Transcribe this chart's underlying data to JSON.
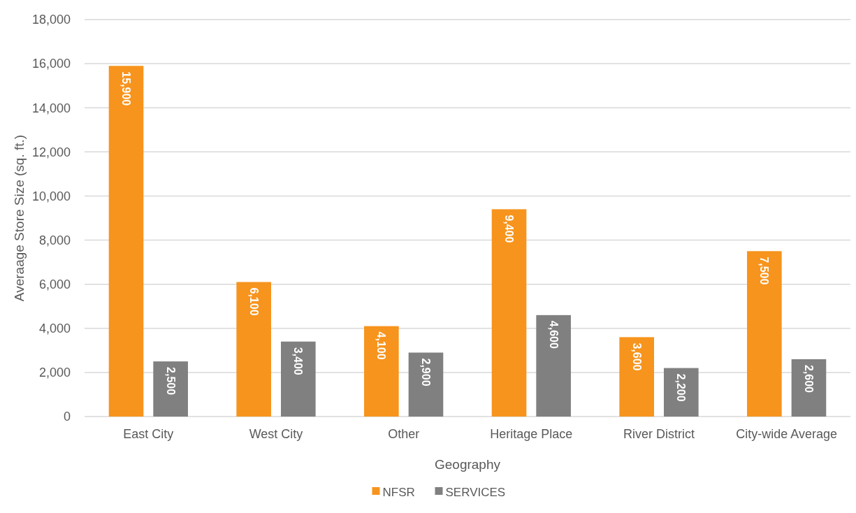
{
  "chart_data": {
    "type": "bar",
    "xlabel": "Geography",
    "ylabel": "Averaage Store Size (sq. ft.)",
    "categories": [
      "East City",
      "West City",
      "Other",
      "Heritage Place",
      "River District",
      "City-wide Average"
    ],
    "series": [
      {
        "name": "NFSR",
        "color": "#f7941d",
        "values": [
          15900,
          6100,
          4100,
          9400,
          3600,
          7500
        ],
        "value_labels": [
          "15,900",
          "6,100",
          "4,100",
          "9,400",
          "3,600",
          "7,500"
        ]
      },
      {
        "name": "SERVICES",
        "color": "#808080",
        "values": [
          2500,
          3400,
          2900,
          4600,
          2200,
          2600
        ],
        "value_labels": [
          "2,500",
          "3,400",
          "2,900",
          "4,600",
          "2,200",
          "2,600"
        ]
      }
    ],
    "ylim": [
      0,
      18000
    ],
    "yticks": [
      {
        "value": 0,
        "label": "0"
      },
      {
        "value": 2000,
        "label": "2,000"
      },
      {
        "value": 4000,
        "label": "4,000"
      },
      {
        "value": 6000,
        "label": "6,000"
      },
      {
        "value": 8000,
        "label": "8,000"
      },
      {
        "value": 10000,
        "label": "10,000"
      },
      {
        "value": 12000,
        "label": "12,000"
      },
      {
        "value": 14000,
        "label": "14,000"
      },
      {
        "value": 16000,
        "label": "16,000"
      },
      {
        "value": 18000,
        "label": "18,000"
      }
    ],
    "grid": "y",
    "legend": "bottom"
  }
}
